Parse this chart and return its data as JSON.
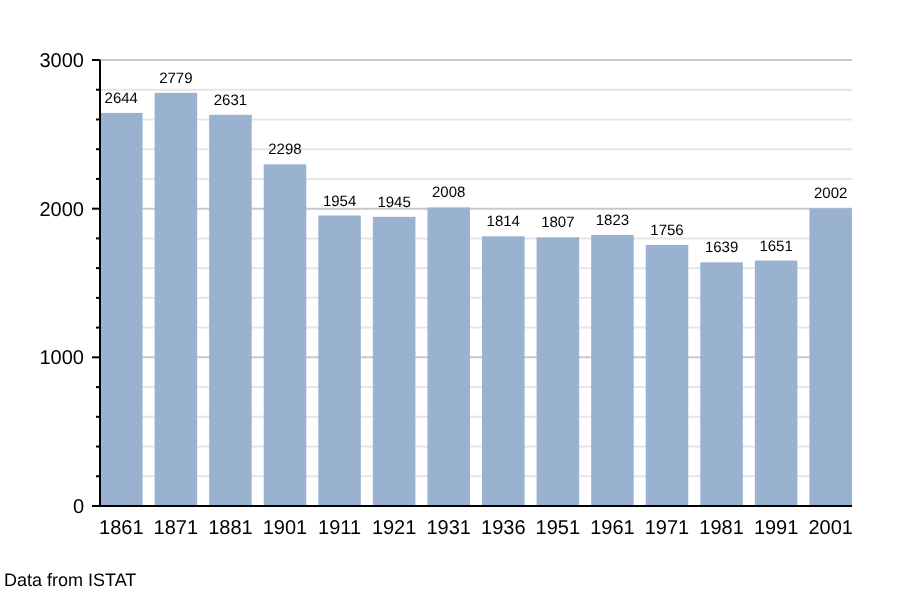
{
  "chart_data": {
    "type": "bar",
    "categories": [
      "1861",
      "1871",
      "1881",
      "1901",
      "1911",
      "1921",
      "1931",
      "1936",
      "1951",
      "1961",
      "1971",
      "1981",
      "1991",
      "2001"
    ],
    "values": [
      2644,
      2779,
      2631,
      2298,
      1954,
      1945,
      2008,
      1814,
      1807,
      1823,
      1756,
      1639,
      1651,
      2002
    ],
    "color": "#98b2d0",
    "data_labels": true,
    "grid": true,
    "ylim": [
      0,
      3000
    ],
    "yticks": [
      0,
      {
        "value": 200,
        "label": null
      },
      {
        "value": 400,
        "label": null
      },
      {
        "value": 600,
        "label": null
      },
      {
        "value": 800,
        "label": null
      },
      1000,
      {
        "value": 1200,
        "label": null
      },
      {
        "value": 1400,
        "label": null
      },
      {
        "value": 1600,
        "label": null
      },
      {
        "value": 1800,
        "label": null
      },
      2000,
      {
        "value": 2200,
        "label": null
      },
      {
        "value": 2400,
        "label": null
      },
      {
        "value": 2600,
        "label": null
      },
      {
        "value": 2800,
        "label": null
      },
      3000
    ],
    "annotations": [
      "Data from ISTAT"
    ]
  }
}
